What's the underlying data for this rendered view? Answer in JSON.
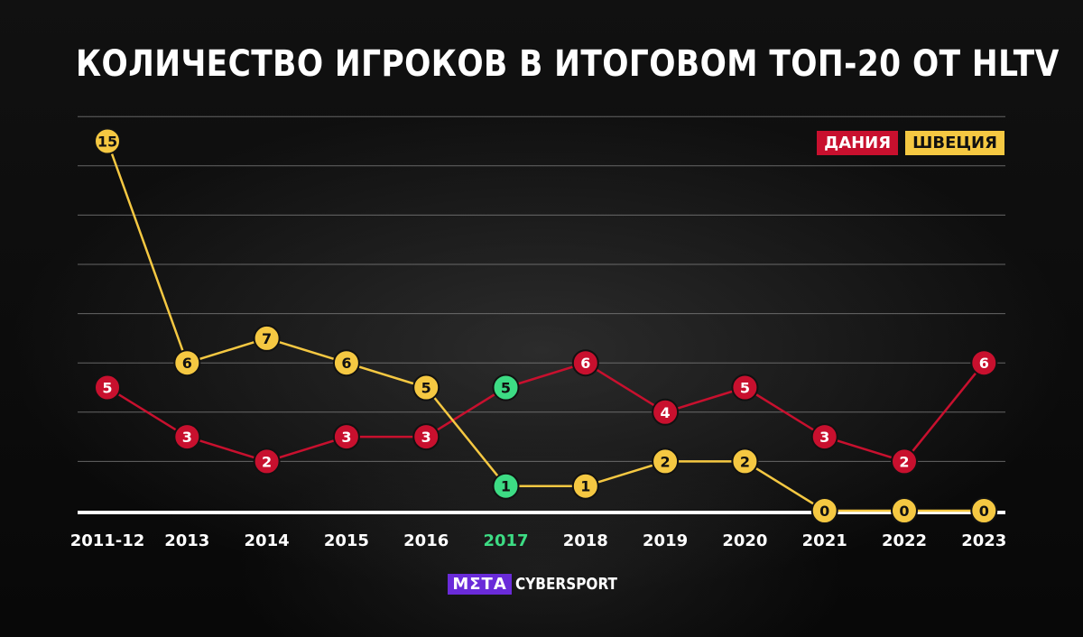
{
  "header": {
    "title": "КОЛИЧЕСТВО ИГРОКОВ В ИТОГОВОМ ТОП-20 ОТ HLTV"
  },
  "legend": {
    "denmark": "ДАНИЯ",
    "sweden": "ШВЕЦИЯ"
  },
  "brand": {
    "meta": "МΣТА",
    "cybersport": "CYBERSPORT"
  },
  "colors": {
    "denmark": "#c8102e",
    "sweden": "#f5c842",
    "highlight": "#3ddc84",
    "grid": "#8a8a8a",
    "axis": "#ffffff",
    "label": "#ffffff"
  },
  "chart_data": {
    "type": "line",
    "title": "КОЛИЧЕСТВО ИГРОКОВ В ИТОГОВОМ ТОП-20 ОТ HLTV",
    "categories": [
      "2011-12",
      "2013",
      "2014",
      "2015",
      "2016",
      "2017",
      "2018",
      "2019",
      "2020",
      "2021",
      "2022",
      "2023"
    ],
    "highlight_category": "2017",
    "series": [
      {
        "name": "ДАНИЯ",
        "values": [
          5,
          3,
          2,
          3,
          3,
          5,
          6,
          4,
          5,
          3,
          2,
          6
        ]
      },
      {
        "name": "ШВЕЦИЯ",
        "values": [
          15,
          6,
          7,
          6,
          5,
          1,
          1,
          2,
          2,
          0,
          0,
          0
        ]
      }
    ],
    "ylim": [
      0,
      16
    ],
    "gridlines": [
      2,
      4,
      6,
      8,
      10,
      12,
      14,
      16
    ],
    "highlight_points": [
      {
        "series": "ДАНИЯ",
        "category": "2017"
      },
      {
        "series": "ШВЕЦИЯ",
        "category": "2017"
      }
    ],
    "legend_position": "top-right",
    "grid": true
  }
}
